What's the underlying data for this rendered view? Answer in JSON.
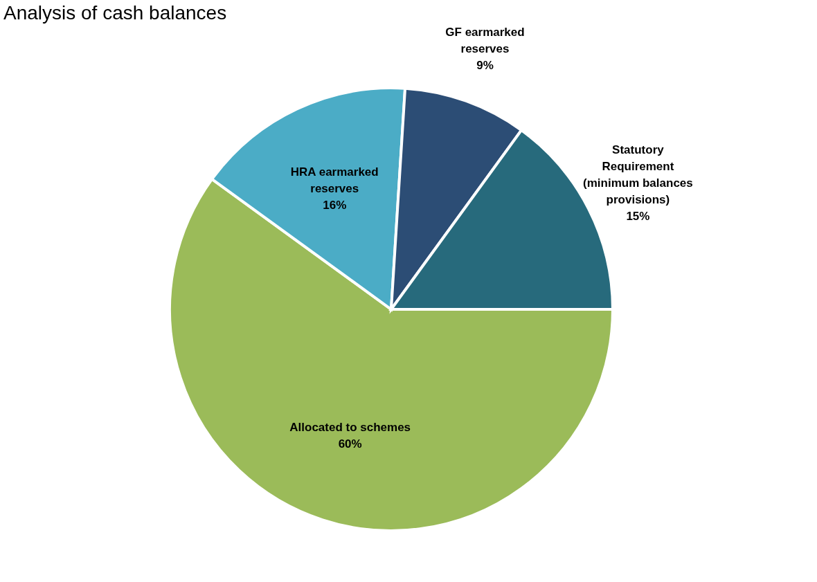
{
  "chart_data": {
    "type": "pie",
    "title": "Analysis of cash balances",
    "categories": [
      "Allocated to schemes",
      "HRA earmarked reserves",
      "GF earmarked reserves",
      "Statutory Requirement (minimum balances provisions)"
    ],
    "values": [
      60,
      16,
      9,
      15
    ],
    "value_labels": [
      "60%",
      "16%",
      "9%",
      "15%"
    ],
    "colors": [
      "#9bbb59",
      "#4bacc6",
      "#2c4d75",
      "#276a7c"
    ],
    "legend": false
  }
}
